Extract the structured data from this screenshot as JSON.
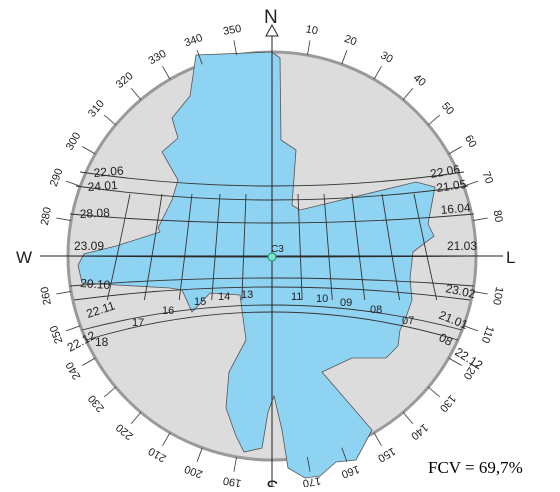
{
  "diagram": {
    "cardinals": {
      "north": "N",
      "south": "S",
      "west": "W",
      "east": "L"
    },
    "azimuth_labels": [
      "10",
      "20",
      "30",
      "40",
      "50",
      "60",
      "70",
      "80",
      "100",
      "110",
      "120",
      "130",
      "140",
      "150",
      "160",
      "170",
      "190",
      "200",
      "210",
      "220",
      "230",
      "240",
      "250",
      "260",
      "280",
      "290",
      "300",
      "310",
      "320",
      "330",
      "340",
      "350"
    ],
    "point_label": "C3",
    "hour_labels": [
      "17",
      "16",
      "15",
      "14",
      "13",
      "11",
      "10",
      "09",
      "08",
      "07"
    ],
    "date_time_labels_left": [
      "22.06",
      "24.01",
      "28.08",
      "23.09",
      "20.10",
      "22.11",
      "22.12",
      "18"
    ],
    "date_time_labels_right": [
      "22.06",
      "21.05",
      "16.04",
      "21.03",
      "23.02",
      "21.01",
      "08",
      "22.12"
    ],
    "colors": {
      "sky": "#8fd3f2",
      "obstruction": "#dcdcdc",
      "disc_edge": "#9a9a9a",
      "grid": "#333333"
    },
    "fcv_text": "FCV = 69,7%"
  }
}
